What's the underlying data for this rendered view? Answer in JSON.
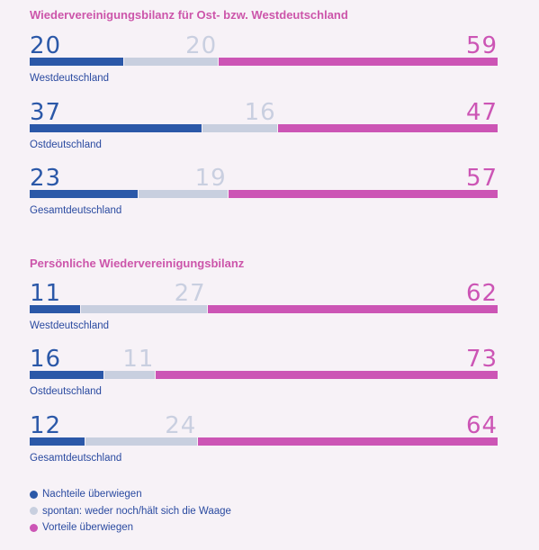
{
  "colors": {
    "disadvantages": "#2b58a8",
    "neutral": "#c8cfdf",
    "advantages": "#cc55b5",
    "neutral_text": "#c9cfe0"
  },
  "chart_data": [
    {
      "type": "bar",
      "subtype": "stacked-100-horizontal",
      "title": "Wiedervereinigungsbilanz für Ost- bzw. Westdeutschland",
      "categories": [
        "Westdeutschland",
        "Ostdeutschland",
        "Gesamtdeutschland"
      ],
      "series": [
        {
          "name": "Nachteile überwiegen",
          "values": [
            20,
            37,
            23
          ]
        },
        {
          "name": "spontan: weder noch/hält sich die Waage",
          "values": [
            20,
            16,
            19
          ]
        },
        {
          "name": "Vorteile überwiegen",
          "values": [
            59,
            47,
            57
          ]
        }
      ]
    },
    {
      "type": "bar",
      "subtype": "stacked-100-horizontal",
      "title": "Persönliche Wiedervereinigungsbilanz",
      "categories": [
        "Westdeutschland",
        "Ostdeutschland",
        "Gesamtdeutschland"
      ],
      "series": [
        {
          "name": "Nachteile überwiegen",
          "values": [
            11,
            16,
            12
          ]
        },
        {
          "name": "spontan: weder noch/hält sich die Waage",
          "values": [
            27,
            11,
            24
          ]
        },
        {
          "name": "Vorteile überwiegen",
          "values": [
            62,
            73,
            64
          ]
        }
      ]
    }
  ]
}
